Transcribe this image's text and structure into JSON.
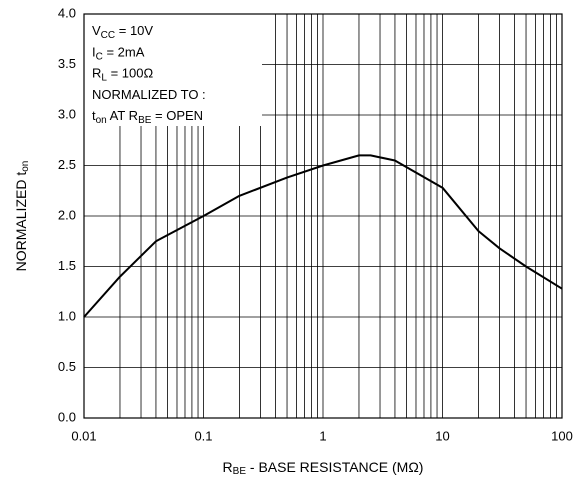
{
  "chart_data": {
    "type": "line",
    "x_label": [
      {
        "text": "R"
      },
      {
        "text": "BE",
        "sub": true
      },
      {
        "text": " - BASE RESISTANCE (MΩ)"
      }
    ],
    "y_label": [
      {
        "text": "NORMALIZED t"
      },
      {
        "text": "on",
        "sub": true
      }
    ],
    "annotations": [
      [
        {
          "text": "V"
        },
        {
          "text": "CC",
          "sub": true
        },
        {
          "text": " = 10V"
        }
      ],
      [
        {
          "text": "I"
        },
        {
          "text": "C",
          "sub": true
        },
        {
          "text": " = 2mA"
        }
      ],
      [
        {
          "text": "R"
        },
        {
          "text": "L",
          "sub": true
        },
        {
          "text": " = 100Ω"
        }
      ],
      [
        {
          "text": "NORMALIZED TO :"
        }
      ],
      [
        {
          "text": "t"
        },
        {
          "text": "on",
          "sub": true
        },
        {
          "text": " AT R"
        },
        {
          "text": "BE",
          "sub": true
        },
        {
          "text": " = OPEN"
        }
      ]
    ],
    "x": [
      0.01,
      0.02,
      0.04,
      0.1,
      0.2,
      0.5,
      1,
      2,
      2.5,
      4,
      10,
      20,
      30,
      50,
      100
    ],
    "series": [
      {
        "color": "#000000",
        "values": [
          1.0,
          1.4,
          1.75,
          2.0,
          2.2,
          2.38,
          2.5,
          2.6,
          2.6,
          2.55,
          2.28,
          1.85,
          1.68,
          1.5,
          1.28
        ]
      }
    ],
    "x_log": true,
    "xlim": [
      0.01,
      100
    ],
    "xticks": [
      0.01,
      0.1,
      1,
      10,
      100
    ],
    "x_minor_ticks": [
      0.02,
      0.03,
      0.04,
      0.05,
      0.06,
      0.07,
      0.08,
      0.09,
      0.2,
      0.3,
      0.4,
      0.5,
      0.6,
      0.7,
      0.8,
      0.9,
      2,
      3,
      4,
      5,
      6,
      7,
      8,
      9,
      20,
      30,
      40,
      50,
      60,
      70,
      80,
      90
    ],
    "ylim": [
      0,
      4
    ],
    "yticks": [
      {
        "value": 0,
        "label": "0.0"
      },
      {
        "value": 0.5,
        "label": "0.5"
      },
      {
        "value": 1,
        "label": "1.0"
      },
      {
        "value": 1.5,
        "label": "1.5"
      },
      {
        "value": 2,
        "label": "2.0"
      },
      {
        "value": 2.5,
        "label": "2.5"
      },
      {
        "value": 3,
        "label": "3.0"
      },
      {
        "value": 3.5,
        "label": "3.5"
      },
      {
        "value": 4,
        "label": "4.0"
      }
    ],
    "grid": true
  }
}
